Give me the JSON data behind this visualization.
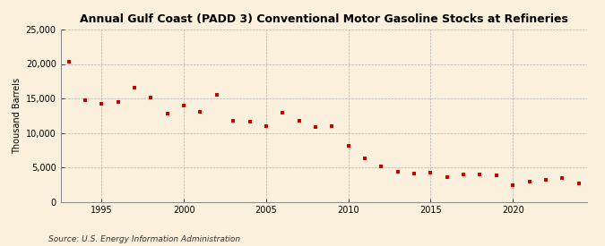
{
  "title": "Annual Gulf Coast (PADD 3) Conventional Motor Gasoline Stocks at Refineries",
  "ylabel": "Thousand Barrels",
  "source": "Source: U.S. Energy Information Administration",
  "background_color": "#FAF0DC",
  "plot_background_color": "#FAF0DC",
  "marker_color": "#CC0000",
  "marker": "s",
  "marker_size": 3.5,
  "grid_color": "#AAAAAA",
  "xlim": [
    1992.5,
    2024.5
  ],
  "ylim": [
    0,
    25000
  ],
  "yticks": [
    0,
    5000,
    10000,
    15000,
    20000,
    25000
  ],
  "xticks": [
    1995,
    2000,
    2005,
    2010,
    2015,
    2020
  ],
  "years": [
    1993,
    1994,
    1995,
    1996,
    1997,
    1998,
    1999,
    2000,
    2001,
    2002,
    2003,
    2004,
    2005,
    2006,
    2007,
    2008,
    2009,
    2010,
    2011,
    2012,
    2013,
    2014,
    2015,
    2016,
    2017,
    2018,
    2019,
    2020,
    2021,
    2022,
    2023,
    2024
  ],
  "values": [
    20300,
    14800,
    14200,
    14500,
    16500,
    15100,
    12800,
    13900,
    13100,
    15500,
    11700,
    11600,
    11000,
    12900,
    11800,
    10900,
    11000,
    8100,
    6300,
    5100,
    4400,
    4100,
    4200,
    3600,
    3900,
    3900,
    3800,
    2400,
    2900,
    3200,
    3500,
    2600
  ]
}
